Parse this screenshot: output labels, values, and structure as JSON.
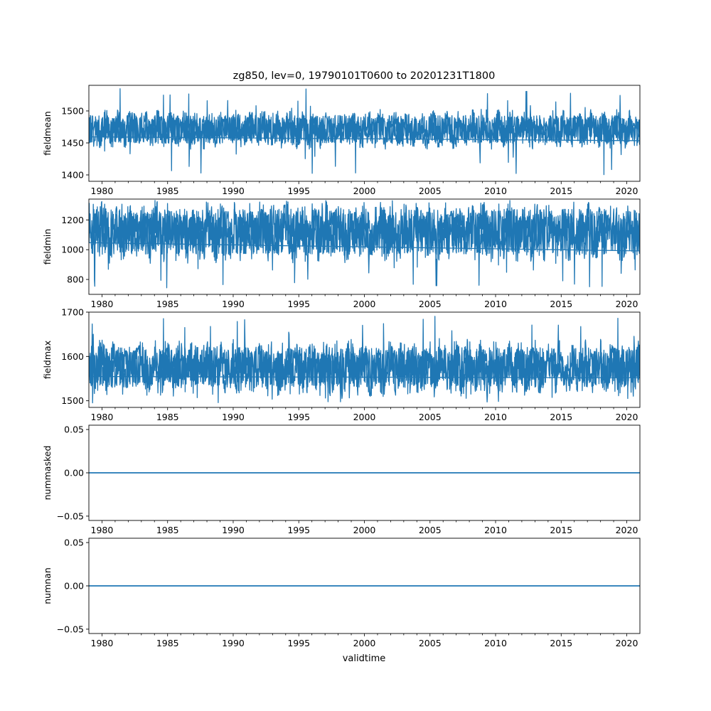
{
  "title": "zg850, lev=0, 19790101T0600 to 20201231T1800",
  "xlabel": "validtime",
  "colors": {
    "line": "#1f77b4",
    "axis": "#000000",
    "background": "#ffffff"
  },
  "chart_data": [
    {
      "type": "line",
      "ylabel": "fieldmean",
      "xlim": [
        "1979-01-01T06:00",
        "2020-12-31T18:00"
      ],
      "ylim": [
        1390,
        1540
      ],
      "yticks": [
        1400,
        1450,
        1500
      ],
      "ytick_labels": [
        "1400",
        "1450",
        "1500"
      ],
      "xticks": [
        "1980",
        "1985",
        "1990",
        "1995",
        "2000",
        "2005",
        "2010",
        "2015",
        "2020"
      ],
      "series_summary": {
        "center": 1471,
        "typical_low": 1445,
        "typical_high": 1500,
        "min": 1398,
        "max": 1535
      },
      "grid": false,
      "legend": "none"
    },
    {
      "type": "line",
      "ylabel": "fieldmin",
      "xlim": [
        "1979-01-01T06:00",
        "2020-12-31T18:00"
      ],
      "ylim": [
        700,
        1340
      ],
      "yticks": [
        800,
        1000,
        1200
      ],
      "ytick_labels": [
        "800",
        "1000",
        "1200"
      ],
      "xticks": [
        "1980",
        "1985",
        "1990",
        "1995",
        "2000",
        "2005",
        "2010",
        "2015",
        "2020"
      ],
      "series_summary": {
        "center": 1120,
        "typical_low": 900,
        "typical_high": 1280,
        "min": 740,
        "max": 1320
      },
      "grid": false,
      "legend": "none"
    },
    {
      "type": "line",
      "ylabel": "fieldmax",
      "xlim": [
        "1979-01-01T06:00",
        "2020-12-31T18:00"
      ],
      "ylim": [
        1485,
        1700
      ],
      "yticks": [
        1500,
        1600,
        1700
      ],
      "ytick_labels": [
        "1500",
        "1600",
        "1700"
      ],
      "xticks": [
        "1980",
        "1985",
        "1990",
        "1995",
        "2000",
        "2005",
        "2010",
        "2015",
        "2020"
      ],
      "series_summary": {
        "center": 1575,
        "typical_low": 1525,
        "typical_high": 1640,
        "min": 1495,
        "max": 1693
      },
      "grid": false,
      "legend": "none"
    },
    {
      "type": "line",
      "ylabel": "nummasked",
      "xlim": [
        "1979-01-01T06:00",
        "2020-12-31T18:00"
      ],
      "ylim": [
        -0.055,
        0.055
      ],
      "yticks": [
        -0.05,
        0.0,
        0.05
      ],
      "ytick_labels": [
        "−0.05",
        "0.00",
        "0.05"
      ],
      "xticks": [
        "1980",
        "1985",
        "1990",
        "1995",
        "2000",
        "2005",
        "2010",
        "2015",
        "2020"
      ],
      "x": [
        "1979-01-01T06:00",
        "2020-12-31T18:00"
      ],
      "y": [
        0,
        0
      ],
      "grid": false,
      "legend": "none"
    },
    {
      "type": "line",
      "ylabel": "numnan",
      "xlim": [
        "1979-01-01T06:00",
        "2020-12-31T18:00"
      ],
      "ylim": [
        -0.055,
        0.055
      ],
      "yticks": [
        -0.05,
        0.0,
        0.05
      ],
      "ytick_labels": [
        "−0.05",
        "0.00",
        "0.05"
      ],
      "xticks": [
        "1980",
        "1985",
        "1990",
        "1995",
        "2000",
        "2005",
        "2010",
        "2015",
        "2020"
      ],
      "x": [
        "1979-01-01T06:00",
        "2020-12-31T18:00"
      ],
      "y": [
        0,
        0
      ],
      "grid": false,
      "legend": "none"
    }
  ]
}
